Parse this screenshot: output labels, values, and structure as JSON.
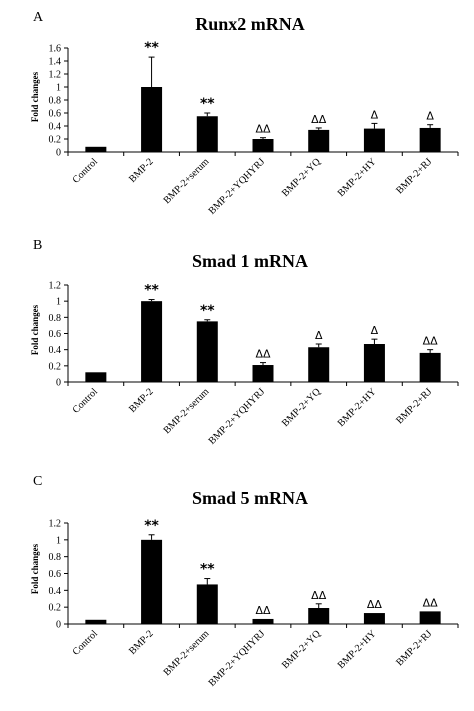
{
  "chart_data": [
    {
      "panel_letter": "A",
      "type": "bar",
      "title": "Runx2 mRNA",
      "ylabel": "Fold changes",
      "xlabel": "",
      "ylim": [
        0,
        1.6
      ],
      "yticks": [
        "0",
        "0.2",
        "0.4",
        "0.6",
        "0.8",
        "1",
        "1.2",
        "1.4",
        "1.6"
      ],
      "categories": [
        "Control",
        "BMP-2",
        "BMP-2+serum",
        "BMP-2+YQHYRJ",
        "BMP-2+YQ",
        "BMP-2+HY",
        "BMP-2+RJ"
      ],
      "values": [
        0.08,
        1.0,
        0.55,
        0.2,
        0.34,
        0.36,
        0.37
      ],
      "errors": [
        0.0,
        0.46,
        0.05,
        0.02,
        0.03,
        0.08,
        0.05
      ],
      "annotations": [
        "",
        "**",
        "**",
        "ΔΔ",
        "ΔΔ",
        "Δ",
        "Δ"
      ],
      "bar_color": "#000000",
      "grid": false
    },
    {
      "panel_letter": "B",
      "type": "bar",
      "title": "Smad 1 mRNA",
      "ylabel": "Fold changes",
      "xlabel": "",
      "ylim": [
        0,
        1.2
      ],
      "yticks": [
        "0",
        "0.2",
        "0.4",
        "0.6",
        "0.8",
        "1",
        "1.2"
      ],
      "categories": [
        "Control",
        "BMP-2",
        "BMP-2+serum",
        "BMP-2+YQHYRJ",
        "BMP-2+YQ",
        "BMP-2+HY",
        "BMP-2+RJ"
      ],
      "values": [
        0.12,
        1.0,
        0.75,
        0.21,
        0.43,
        0.47,
        0.36
      ],
      "errors": [
        0.0,
        0.02,
        0.02,
        0.03,
        0.04,
        0.06,
        0.04
      ],
      "annotations": [
        "",
        "**",
        "**",
        "ΔΔ",
        "Δ",
        "Δ",
        "ΔΔ"
      ],
      "bar_color": "#000000",
      "grid": false
    },
    {
      "panel_letter": "C",
      "type": "bar",
      "title": "Smad 5 mRNA",
      "ylabel": "Fold changes",
      "xlabel": "",
      "ylim": [
        0,
        1.2
      ],
      "yticks": [
        "0",
        "0.2",
        "0.4",
        "0.6",
        "0.8",
        "1",
        "1.2"
      ],
      "categories": [
        "Control",
        "BMP-2",
        "BMP-2+serum",
        "BMP-2+YQHYRJ",
        "BMP-2+YQ",
        "BMP-2+HY",
        "BMP-2+RJ"
      ],
      "values": [
        0.05,
        1.0,
        0.47,
        0.06,
        0.19,
        0.13,
        0.15
      ],
      "errors": [
        0.0,
        0.06,
        0.07,
        0.0,
        0.05,
        0.0,
        0.0
      ],
      "annotations": [
        "",
        "**",
        "**",
        "ΔΔ",
        "ΔΔ",
        "ΔΔ",
        "ΔΔ"
      ],
      "bar_color": "#000000",
      "grid": false
    }
  ]
}
